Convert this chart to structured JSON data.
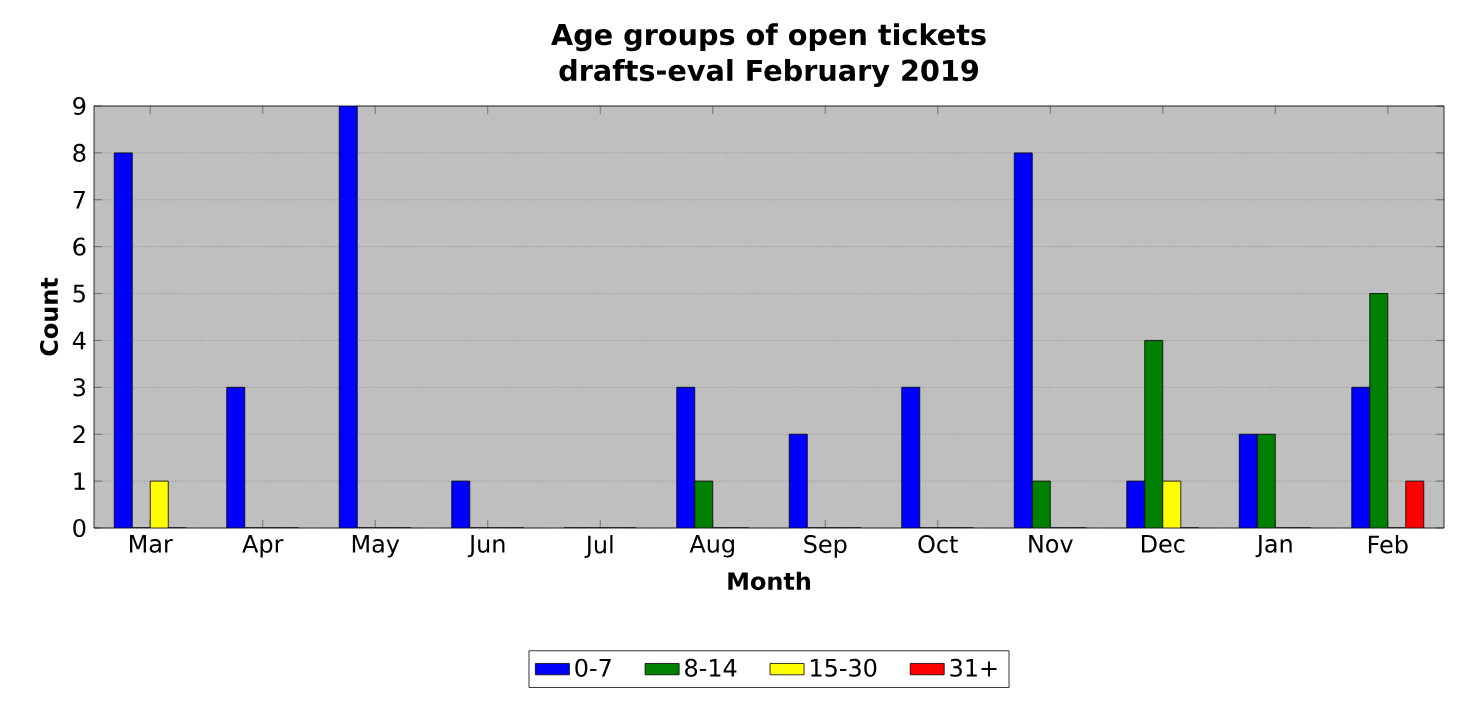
{
  "chart_data": {
    "type": "bar",
    "title": "Age groups of open tickets",
    "subtitle": "drafts-eval February 2019",
    "xlabel": "Month",
    "ylabel": "Count",
    "categories": [
      "Mar",
      "Apr",
      "May",
      "Jun",
      "Jul",
      "Aug",
      "Sep",
      "Oct",
      "Nov",
      "Dec",
      "Jan",
      "Feb"
    ],
    "series": [
      {
        "name": "0-7",
        "color": "#0000ff",
        "values": [
          8,
          3,
          9,
          1,
          0,
          3,
          2,
          3,
          8,
          1,
          2,
          3
        ]
      },
      {
        "name": "8-14",
        "color": "#008000",
        "values": [
          0,
          0,
          0,
          0,
          0,
          1,
          0,
          0,
          1,
          4,
          2,
          5
        ]
      },
      {
        "name": "15-30",
        "color": "#ffff00",
        "values": [
          1,
          0,
          0,
          0,
          0,
          0,
          0,
          0,
          0,
          1,
          0,
          0
        ]
      },
      {
        "name": "31+",
        "color": "#ff0000",
        "values": [
          0,
          0,
          0,
          0,
          0,
          0,
          0,
          0,
          0,
          0,
          0,
          1
        ]
      }
    ],
    "ylim": [
      0,
      9
    ],
    "yticks": [
      0,
      1,
      2,
      3,
      4,
      5,
      6,
      7,
      8,
      9
    ],
    "grid": "y",
    "legend": "bottom"
  }
}
